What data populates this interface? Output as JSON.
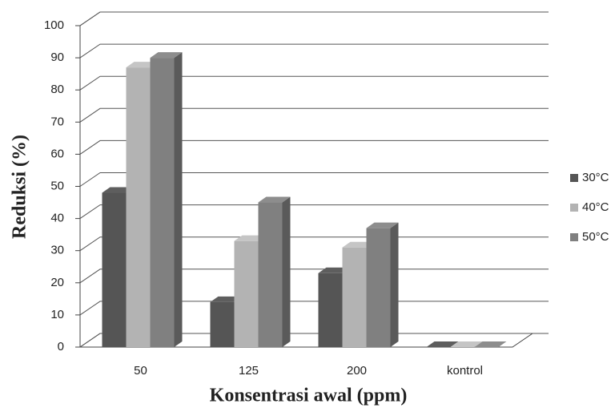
{
  "chart_data": {
    "type": "bar",
    "x_label": "Konsentrasi awal (ppm)",
    "y_label": "Reduksi (%)",
    "categories": [
      "50",
      "125",
      "200",
      "kontrol"
    ],
    "series": [
      {
        "name": "30°C",
        "color": "#555555",
        "values": [
          48,
          14,
          23,
          0
        ]
      },
      {
        "name": "40°C",
        "color": "#b3b3b3",
        "values": [
          87,
          33,
          31,
          0
        ]
      },
      {
        "name": "50°C",
        "color": "#808080",
        "values": [
          90,
          45,
          37,
          0
        ]
      }
    ],
    "ylim": [
      0,
      100
    ],
    "yticks": [
      0,
      10,
      20,
      30,
      40,
      50,
      60,
      70,
      80,
      90,
      100
    ],
    "grid": true,
    "legend": "right"
  }
}
